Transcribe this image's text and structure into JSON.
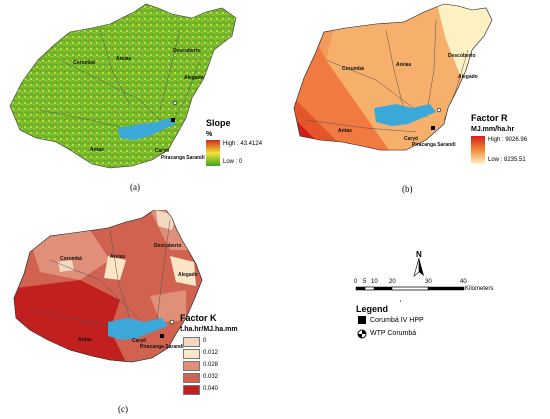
{
  "panels": {
    "a": {
      "caption": "(a)",
      "legend": {
        "title": "Slope",
        "unit": "%",
        "high": "High : 43.4124",
        "low": "Low : 0"
      },
      "places": [
        "Corumbá",
        "Areias",
        "Descoberto",
        "Alegado",
        "Antas",
        "Caryó",
        "Piracanga Sarandi"
      ]
    },
    "b": {
      "caption": "(b)",
      "legend": {
        "title": "Factor R",
        "unit": "MJ.mm/ha.hr",
        "high": "High : 9026.96",
        "low": "Low : 8235.51"
      },
      "places": [
        "Corumbá",
        "Areias",
        "Descoberto",
        "Alegado",
        "Antas",
        "Caryó",
        "Piracanga Sarandi"
      ]
    },
    "c": {
      "caption": "(c)",
      "legend": {
        "title": "Factor K",
        "unit": "t.ha.hr/MJ.ha.mm",
        "classes": [
          {
            "label": "0",
            "color": "#f4d9c2"
          },
          {
            "label": "0.012",
            "color": "#fbe6c6"
          },
          {
            "label": "0.028",
            "color": "#e08f79"
          },
          {
            "label": "0.032",
            "color": "#d0624f"
          },
          {
            "label": "0.040",
            "color": "#c21f1f"
          }
        ]
      },
      "places": [
        "Corumbá",
        "Areias",
        "Descoberto",
        "Alegado",
        "Antas",
        "Caryó",
        "Piracanga Sarandi"
      ]
    }
  },
  "scalebar": {
    "ticks": [
      "0",
      "5",
      "10",
      "20",
      "30",
      "40"
    ],
    "unit": "Kilometers",
    "north": "N"
  },
  "legend": {
    "title": "Legend",
    "items": [
      {
        "label": "Corumbá IV HPP",
        "icon": "black-square-icon"
      },
      {
        "label": "WTP Corumbá",
        "icon": "circle-cross-icon"
      }
    ]
  }
}
